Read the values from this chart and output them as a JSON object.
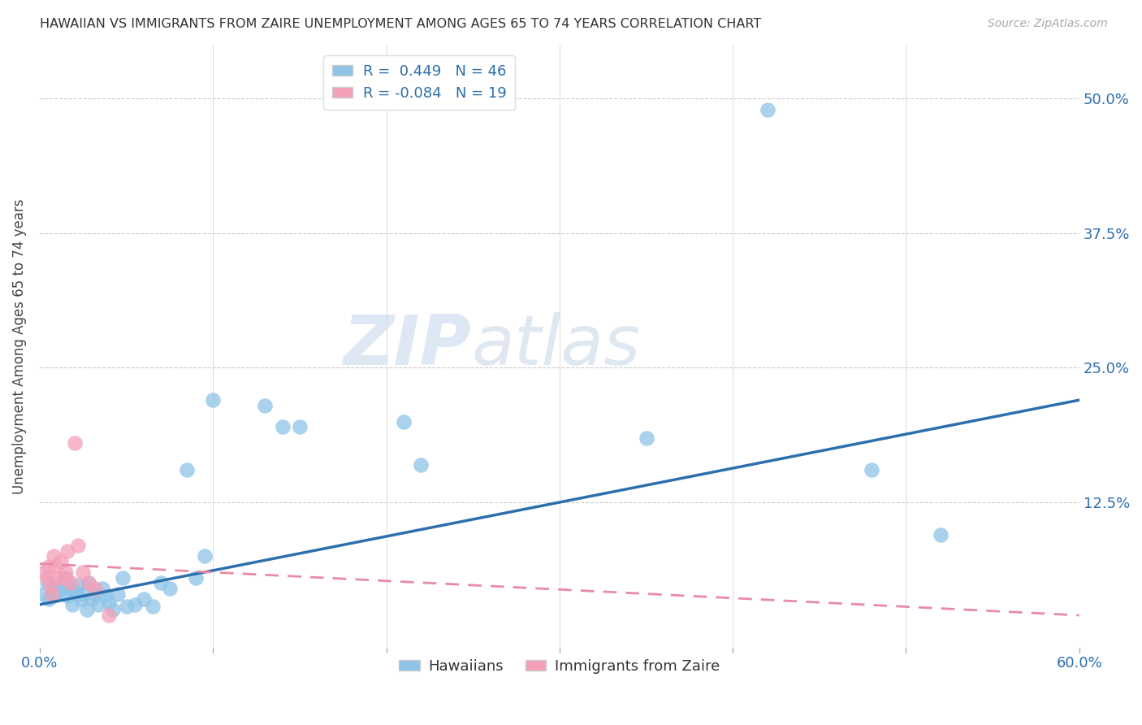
{
  "title": "HAWAIIAN VS IMMIGRANTS FROM ZAIRE UNEMPLOYMENT AMONG AGES 65 TO 74 YEARS CORRELATION CHART",
  "source": "Source: ZipAtlas.com",
  "ylabel": "Unemployment Among Ages 65 to 74 years",
  "xlim": [
    0.0,
    0.6
  ],
  "ylim": [
    -0.01,
    0.55
  ],
  "xticks": [
    0.0,
    0.1,
    0.2,
    0.3,
    0.4,
    0.5,
    0.6
  ],
  "xticklabels": [
    "0.0%",
    "",
    "",
    "",
    "",
    "",
    "60.0%"
  ],
  "yticks": [
    0.0,
    0.125,
    0.25,
    0.375,
    0.5
  ],
  "yticklabels_right": [
    "",
    "12.5%",
    "25.0%",
    "37.5%",
    "50.0%"
  ],
  "hawaiians_R": 0.449,
  "hawaiians_N": 46,
  "zaire_R": -0.084,
  "zaire_N": 19,
  "blue_color": "#8ec4e8",
  "pink_color": "#f4a0b8",
  "blue_line_color": "#2c6fad",
  "pink_line_color": "#e88aa8",
  "legend1_label": "Hawaiians",
  "legend2_label": "Immigrants from Zaire",
  "hawaiians_x": [
    0.002,
    0.004,
    0.005,
    0.007,
    0.008,
    0.01,
    0.012,
    0.013,
    0.015,
    0.016,
    0.017,
    0.019,
    0.021,
    0.022,
    0.024,
    0.025,
    0.027,
    0.028,
    0.03,
    0.032,
    0.034,
    0.036,
    0.038,
    0.04,
    0.042,
    0.045,
    0.048,
    0.05,
    0.055,
    0.06,
    0.065,
    0.07,
    0.075,
    0.085,
    0.09,
    0.095,
    0.1,
    0.13,
    0.14,
    0.15,
    0.21,
    0.22,
    0.35,
    0.42,
    0.48,
    0.52
  ],
  "hawaiians_y": [
    0.04,
    0.05,
    0.035,
    0.045,
    0.038,
    0.042,
    0.05,
    0.045,
    0.055,
    0.038,
    0.045,
    0.03,
    0.042,
    0.048,
    0.035,
    0.04,
    0.025,
    0.05,
    0.035,
    0.04,
    0.03,
    0.045,
    0.038,
    0.032,
    0.025,
    0.04,
    0.055,
    0.028,
    0.03,
    0.035,
    0.028,
    0.05,
    0.045,
    0.155,
    0.055,
    0.075,
    0.22,
    0.215,
    0.195,
    0.195,
    0.2,
    0.16,
    0.185,
    0.49,
    0.155,
    0.095
  ],
  "zaire_x": [
    0.002,
    0.004,
    0.005,
    0.006,
    0.007,
    0.008,
    0.009,
    0.01,
    0.012,
    0.014,
    0.015,
    0.016,
    0.018,
    0.02,
    0.022,
    0.025,
    0.028,
    0.032,
    0.04
  ],
  "zaire_y": [
    0.06,
    0.055,
    0.065,
    0.048,
    0.04,
    0.075,
    0.065,
    0.055,
    0.07,
    0.055,
    0.06,
    0.08,
    0.05,
    0.18,
    0.085,
    0.06,
    0.05,
    0.045,
    0.02
  ],
  "blue_trend_x0": 0.0,
  "blue_trend_y0": 0.03,
  "blue_trend_x1": 0.6,
  "blue_trend_y1": 0.22,
  "pink_trend_x0": 0.0,
  "pink_trend_y0": 0.068,
  "pink_trend_x1": 0.6,
  "pink_trend_y1": 0.02,
  "watermark_zip": "ZIP",
  "watermark_atlas": "atlas",
  "background_color": "#ffffff",
  "grid_color": "#cccccc",
  "title_fontsize": 11.5,
  "source_fontsize": 10,
  "tick_fontsize": 13,
  "ylabel_fontsize": 12,
  "legend_fontsize": 13
}
